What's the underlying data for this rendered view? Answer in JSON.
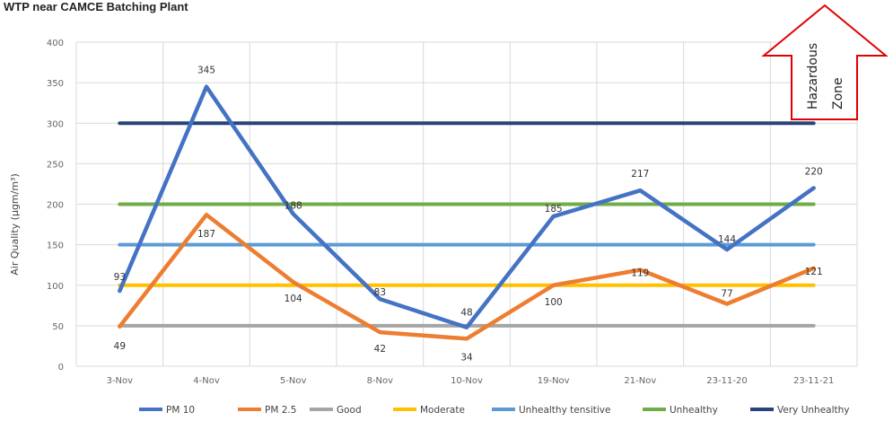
{
  "chart_data": {
    "type": "line",
    "title": "WTP near CAMCE Batching Plant",
    "ylabel": "Air Quality (µgm/m³)",
    "xlabel": "",
    "ylim": [
      0,
      400
    ],
    "yticks": [
      0,
      50,
      100,
      150,
      200,
      250,
      300,
      350,
      400
    ],
    "grid": true,
    "legend_position": "bottom",
    "categories": [
      "3-Nov",
      "4-Nov",
      "5-Nov",
      "8-Nov",
      "10-Nov",
      "19-Nov",
      "21-Nov",
      "23-11-20",
      "23-11-21"
    ],
    "series": [
      {
        "name": "PM 10",
        "color": "#4472C4",
        "values": [
          93,
          345,
          188,
          83,
          48,
          185,
          217,
          144,
          220
        ],
        "labels": [
          "93",
          "345",
          "188",
          "83",
          "48",
          "185",
          "217",
          "144",
          "220"
        ]
      },
      {
        "name": "PM 2.5",
        "color": "#ED7D31",
        "values": [
          49,
          187,
          104,
          42,
          34,
          100,
          119,
          77,
          121
        ],
        "labels": [
          "49",
          "187",
          "104",
          "42",
          "34",
          "100",
          "119",
          "77",
          "121"
        ]
      },
      {
        "name": "Good",
        "color": "#A5A5A5",
        "values": [
          50,
          50,
          50,
          50,
          50,
          50,
          50,
          50,
          50
        ]
      },
      {
        "name": "Moderate",
        "color": "#FFC000",
        "values": [
          100,
          100,
          100,
          100,
          100,
          100,
          100,
          100,
          100
        ]
      },
      {
        "name": "Unhealthy tensitive",
        "color": "#5B9BD5",
        "values": [
          150,
          150,
          150,
          150,
          150,
          150,
          150,
          150,
          150
        ]
      },
      {
        "name": "Unhealthy",
        "color": "#70AD47",
        "values": [
          200,
          200,
          200,
          200,
          200,
          200,
          200,
          200,
          200
        ]
      },
      {
        "name": "Very Unhealthy",
        "color": "#264478",
        "values": [
          300,
          300,
          300,
          300,
          300,
          300,
          300,
          300,
          300
        ]
      }
    ],
    "annotation": {
      "text_line1": "Hazardous",
      "text_line2": "Zone",
      "arrow_color": "#E00000"
    }
  }
}
